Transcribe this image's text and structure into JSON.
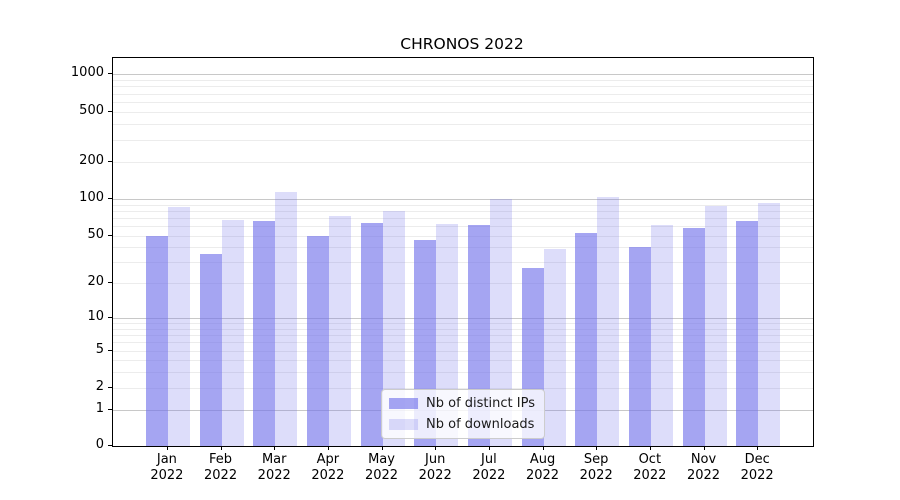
{
  "figure": {
    "title": "CHRONOS 2022"
  },
  "chart_data": {
    "type": "bar",
    "title": "CHRONOS 2022",
    "categories": [
      "Jan",
      "Feb",
      "Mar",
      "Apr",
      "May",
      "Jun",
      "Jul",
      "Aug",
      "Sep",
      "Oct",
      "Nov",
      "Dec"
    ],
    "category_year": "2022",
    "series": [
      {
        "name": "Nb of distinct IPs",
        "color": "rgba(113,113,235,0.63)",
        "values": [
          50,
          35,
          66,
          50,
          64,
          46,
          62,
          27,
          53,
          40,
          58,
          66
        ]
      },
      {
        "name": "Nb of downloads",
        "color": "rgba(113,113,235,0.24)",
        "values": [
          86,
          67,
          113,
          73,
          80,
          63,
          100,
          39,
          103,
          61,
          87,
          93
        ]
      }
    ],
    "yscale": "symlog",
    "yticks": [
      0,
      1,
      2,
      5,
      10,
      20,
      50,
      100,
      200,
      500,
      1000
    ],
    "minor_gridlines": [
      2,
      3,
      4,
      5,
      6,
      7,
      8,
      9,
      20,
      30,
      40,
      50,
      60,
      70,
      80,
      90,
      200,
      300,
      400,
      500,
      600,
      700,
      800,
      900
    ],
    "major_gridlines": [
      1,
      10,
      100,
      1000
    ],
    "xlabel": "",
    "ylabel": "",
    "grid": "horizontal",
    "legend_position": "lower center"
  },
  "colors": {
    "bar_base": "#7171eb",
    "bar_distinct_ips_effective": "#a6a6f3",
    "bar_downloads_effective": "#dbdbf9",
    "major_grid": "#c8c8c8",
    "minor_grid": "#ececec",
    "axis": "#000000",
    "legend_border": "#cccccc",
    "text": "#000000"
  }
}
